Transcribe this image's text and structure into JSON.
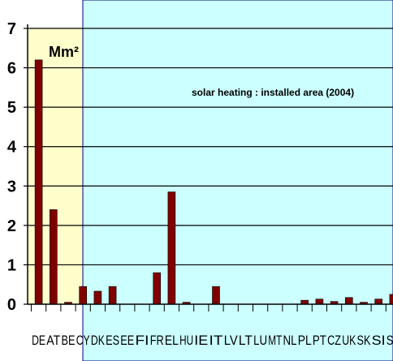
{
  "chart_data": {
    "type": "bar",
    "title": "solar heating : installed area (2004)",
    "unit_label": "Mm²",
    "categories": [
      "DE",
      "AT",
      "BE",
      "CY",
      "DK",
      "ES",
      "EE",
      "FI",
      "FR",
      "EL",
      "HU",
      "IE",
      "IT",
      "LV",
      "LT",
      "LU",
      "MT",
      "NL",
      "PL",
      "PT",
      "CZ",
      "UK",
      "SK",
      "SI",
      "SE"
    ],
    "values": [
      6.2,
      2.4,
      0.05,
      0.45,
      0.33,
      0.45,
      0.0,
      0.0,
      0.8,
      2.85,
      0.05,
      0.0,
      0.45,
      0.0,
      0.0,
      0.0,
      0.0,
      0.0,
      0.1,
      0.13,
      0.07,
      0.17,
      0.05,
      0.13,
      0.25
    ],
    "ylim": [
      0,
      7
    ],
    "yticks": [
      "0",
      "1",
      "2",
      "3",
      "4",
      "5",
      "6",
      "7"
    ],
    "grid": true,
    "colors": {
      "bar": "#800000",
      "plot_background": "#ffffcc",
      "overlay_background": "#ccffff",
      "overlay_border": "#000080",
      "grid": "#000000"
    }
  }
}
